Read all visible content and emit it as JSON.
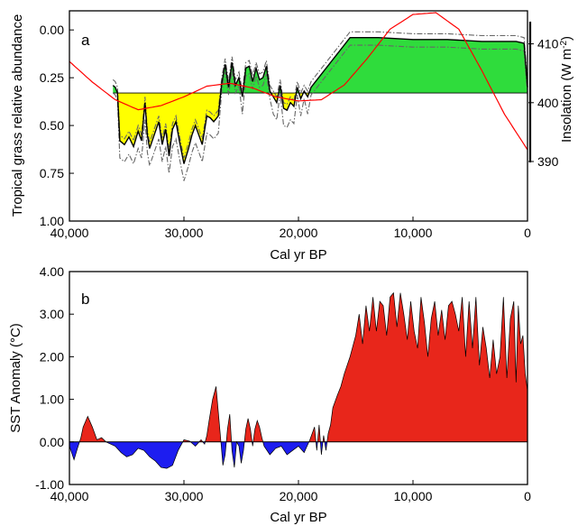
{
  "chart_data": [
    {
      "panel": "a",
      "type": "area",
      "xlabel": "Cal yr BP",
      "ylabel": "Tropical grass relative abundance",
      "y2label_main": "Insolation (W m",
      "y2label_sup": "-2",
      "y2label_end": ")",
      "xlim": [
        40000,
        0
      ],
      "ylim": [
        1.0,
        -0.1
      ],
      "y2lim": [
        388,
        417
      ],
      "x_ticks": [
        40000,
        30000,
        20000,
        10000,
        0
      ],
      "x_tick_labels": [
        "40,000",
        "30,000",
        "20,000",
        "10,000",
        "0"
      ],
      "y_ticks": [
        0.0,
        0.25,
        0.5,
        0.75,
        1.0
      ],
      "y_tick_labels": [
        "0.00",
        "0.25",
        "0.50",
        "0.75",
        "1.00"
      ],
      "y2_ticks": [
        390,
        400,
        410
      ],
      "y2_tick_labels": [
        "390",
        "400",
        "410"
      ],
      "baseline": 0.33,
      "colors": {
        "above_baseline": "#2fdc3c",
        "below_baseline": "#ffff00",
        "insolation": "#ff0000",
        "envelope": "#666666"
      },
      "grass_abundance": {
        "x": [
          36200,
          36000,
          35800,
          35600,
          35200,
          34800,
          34400,
          34000,
          33700,
          33400,
          33200,
          33000,
          32600,
          32200,
          31900,
          31600,
          31300,
          31000,
          30700,
          30400,
          30000,
          29600,
          29300,
          29000,
          28700,
          28400,
          28000,
          27700,
          27400,
          27000,
          26700,
          26400,
          26100,
          25800,
          25500,
          25200,
          24900,
          24600,
          24300,
          24000,
          23700,
          23400,
          23100,
          22800,
          22500,
          22200,
          21900,
          21600,
          21300,
          21000,
          20700,
          20400,
          20100,
          19800,
          19500,
          19200,
          18900,
          15500,
          13000,
          10000,
          7000,
          4000,
          1000,
          300,
          0
        ],
        "y": [
          0.29,
          0.3,
          0.33,
          0.58,
          0.6,
          0.56,
          0.61,
          0.53,
          0.58,
          0.38,
          0.55,
          0.62,
          0.55,
          0.48,
          0.6,
          0.52,
          0.66,
          0.52,
          0.48,
          0.58,
          0.7,
          0.62,
          0.55,
          0.5,
          0.55,
          0.6,
          0.45,
          0.46,
          0.48,
          0.45,
          0.28,
          0.18,
          0.3,
          0.17,
          0.29,
          0.25,
          0.35,
          0.2,
          0.19,
          0.27,
          0.2,
          0.26,
          0.25,
          0.19,
          0.32,
          0.35,
          0.38,
          0.29,
          0.41,
          0.42,
          0.38,
          0.4,
          0.3,
          0.36,
          0.32,
          0.35,
          0.3,
          0.04,
          0.04,
          0.05,
          0.05,
          0.06,
          0.06,
          0.07,
          0.3
        ]
      },
      "insolation": {
        "x": [
          40000,
          38000,
          36000,
          34000,
          32000,
          30000,
          28000,
          26000,
          24000,
          22000,
          20000,
          18000,
          16000,
          14000,
          12000,
          10000,
          8000,
          6000,
          4000,
          2000,
          0
        ],
        "y": [
          407,
          403.5,
          400.5,
          398.8,
          399.5,
          401,
          402.8,
          403.3,
          402.5,
          401,
          400.3,
          400.5,
          403,
          407.5,
          412.5,
          415,
          415.3,
          412.5,
          405.5,
          398,
          392
        ]
      }
    },
    {
      "panel": "b",
      "type": "area",
      "xlabel": "Cal yr BP",
      "ylabel": "SST Anomaly (°C)",
      "xlim": [
        40000,
        0
      ],
      "ylim": [
        -1.0,
        4.0
      ],
      "x_ticks": [
        40000,
        30000,
        20000,
        10000,
        0
      ],
      "x_tick_labels": [
        "40,000",
        "30,000",
        "20,000",
        "10,000",
        "0"
      ],
      "y_ticks": [
        -1.0,
        0.0,
        1.0,
        2.0,
        3.0,
        4.0
      ],
      "y_tick_labels": [
        "-1.00",
        "0.00",
        "1.00",
        "2.00",
        "3.00",
        "4.00"
      ],
      "colors": {
        "positive": "#e8261b",
        "negative": "#1d1df0"
      },
      "sst_anomaly": {
        "x": [
          40000,
          39600,
          39300,
          39000,
          38800,
          38400,
          38000,
          37600,
          37200,
          36800,
          36400,
          36000,
          35500,
          35000,
          34500,
          34000,
          33500,
          33000,
          32500,
          32000,
          31500,
          31000,
          30500,
          30000,
          29500,
          29000,
          28500,
          28200,
          28000,
          27800,
          27500,
          27200,
          27000,
          26800,
          26600,
          26400,
          26200,
          26000,
          25800,
          25600,
          25400,
          25200,
          25000,
          24800,
          24600,
          24400,
          24200,
          24000,
          23800,
          23600,
          23400,
          23200,
          23000,
          22500,
          22000,
          21500,
          21000,
          20500,
          20000,
          19500,
          19000,
          18600,
          18400,
          18200,
          18000,
          17800,
          17600,
          17400,
          17200,
          17000,
          16600,
          16300,
          16000,
          15500,
          15000,
          14700,
          14400,
          14100,
          13800,
          13500,
          13200,
          12900,
          12600,
          12300,
          12000,
          11700,
          11400,
          11100,
          10800,
          10500,
          10200,
          9900,
          9600,
          9300,
          9000,
          8700,
          8400,
          8100,
          7800,
          7500,
          7200,
          6900,
          6600,
          6300,
          6000,
          5700,
          5400,
          5100,
          4800,
          4500,
          4200,
          3900,
          3600,
          3300,
          3000,
          2700,
          2400,
          2100,
          1800,
          1500,
          1200,
          1000,
          800,
          600,
          400,
          200,
          0
        ],
        "y": [
          -0.1,
          -0.42,
          -0.15,
          0.1,
          0.35,
          0.6,
          0.35,
          0.05,
          0.1,
          0.0,
          -0.05,
          -0.1,
          -0.25,
          -0.35,
          -0.3,
          -0.15,
          -0.2,
          -0.35,
          -0.45,
          -0.6,
          -0.62,
          -0.55,
          -0.2,
          0.05,
          0.02,
          -0.1,
          0.05,
          -0.05,
          0.15,
          0.5,
          1.0,
          1.3,
          0.7,
          0.1,
          -0.55,
          -0.3,
          0.3,
          0.65,
          -0.2,
          -0.6,
          0.0,
          -0.1,
          -0.5,
          -0.2,
          0.3,
          0.55,
          0.3,
          -0.1,
          0.3,
          0.5,
          0.35,
          0.1,
          -0.1,
          -0.3,
          -0.15,
          -0.1,
          -0.3,
          -0.2,
          -0.1,
          -0.25,
          0.05,
          0.35,
          -0.2,
          0.4,
          -0.3,
          0.15,
          -0.2,
          0.2,
          0.4,
          0.8,
          1.1,
          1.3,
          1.6,
          2.0,
          2.5,
          3.0,
          2.3,
          3.2,
          2.6,
          3.4,
          2.6,
          3.3,
          3.2,
          2.5,
          3.4,
          3.5,
          2.7,
          3.5,
          3.0,
          2.4,
          3.3,
          2.6,
          2.2,
          3.4,
          2.8,
          2.0,
          2.9,
          3.3,
          2.5,
          3.1,
          2.4,
          3.2,
          3.3,
          3.0,
          2.6,
          3.4,
          2.0,
          3.3,
          2.2,
          3.4,
          1.8,
          2.7,
          2.2,
          1.5,
          2.4,
          1.6,
          2.0,
          3.4,
          1.5,
          2.9,
          3.3,
          1.4,
          3.2,
          2.3,
          2.5,
          1.6,
          1.2
        ]
      }
    }
  ]
}
